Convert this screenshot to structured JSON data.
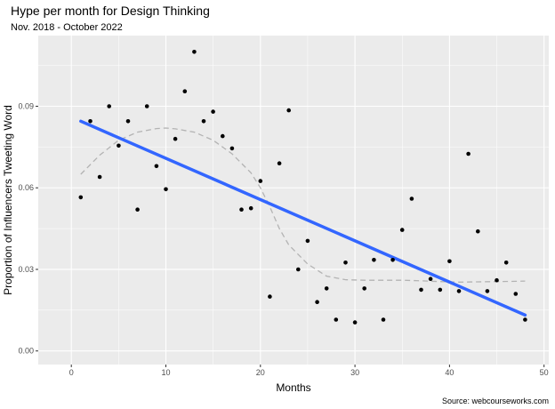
{
  "chart_data": {
    "type": "scatter",
    "title": "Hype per month for Design Thinking",
    "subtitle": "Nov. 2018 - October 2022",
    "xlabel": "Months",
    "ylabel": "Proportion of Influencers Tweeting Word",
    "caption": "Source: webcourseworks.com",
    "xlim": [
      -3.5,
      50.5
    ],
    "ylim": [
      -0.005,
      0.116
    ],
    "x_ticks": [
      0,
      10,
      20,
      30,
      40,
      50
    ],
    "x_tick_labels": [
      "0",
      "10",
      "20",
      "30",
      "40",
      "50"
    ],
    "y_ticks": [
      0.0,
      0.03,
      0.06,
      0.09
    ],
    "y_tick_labels": [
      "0.00",
      "0.03",
      "0.06",
      "0.09"
    ],
    "grid": true,
    "colors": {
      "panel": "#ebebeb",
      "grid": "#ffffff",
      "points": "#000000",
      "linear_fit": "#3366ff",
      "smooth_fit": "#b3b3b3"
    },
    "series": [
      {
        "kind": "points",
        "x": [
          1,
          2,
          3,
          4,
          5,
          6,
          7,
          8,
          9,
          10,
          11,
          12,
          13,
          14,
          15,
          16,
          17,
          18,
          19,
          20,
          21,
          22,
          23,
          24,
          25,
          26,
          27,
          28,
          29,
          30,
          31,
          32,
          33,
          34,
          35,
          36,
          37,
          38,
          39,
          40,
          41,
          42,
          43,
          44,
          45,
          46,
          47,
          48
        ],
        "y": [
          0.0565,
          0.0845,
          0.064,
          0.09,
          0.0755,
          0.0845,
          0.052,
          0.09,
          0.068,
          0.0595,
          0.078,
          0.0955,
          0.11,
          0.0845,
          0.088,
          0.079,
          0.0745,
          0.052,
          0.0525,
          0.0625,
          0.02,
          0.069,
          0.0885,
          0.03,
          0.0405,
          0.018,
          0.023,
          0.0115,
          0.0325,
          0.0105,
          0.023,
          0.0335,
          0.0115,
          0.0335,
          0.0445,
          0.056,
          0.0225,
          0.0265,
          0.0225,
          0.033,
          0.022,
          0.0725,
          0.044,
          0.022,
          0.026,
          0.0325,
          0.021,
          0.0115
        ]
      },
      {
        "kind": "linear-fit",
        "x": [
          1,
          48
        ],
        "y": [
          0.0845,
          0.0132
        ]
      },
      {
        "kind": "loess-smooth",
        "x": [
          1,
          3,
          5,
          7,
          9,
          10,
          11,
          13,
          15,
          17,
          19,
          20,
          21,
          22,
          23,
          25,
          27,
          29,
          31,
          33,
          35,
          37,
          39,
          41,
          43,
          45,
          47,
          48
        ],
        "y": [
          0.065,
          0.072,
          0.0775,
          0.0805,
          0.0818,
          0.082,
          0.0817,
          0.0805,
          0.0775,
          0.0725,
          0.0655,
          0.06,
          0.053,
          0.045,
          0.039,
          0.032,
          0.0275,
          0.0262,
          0.026,
          0.026,
          0.026,
          0.0258,
          0.0255,
          0.0253,
          0.0254,
          0.0255,
          0.0256,
          0.0257
        ]
      }
    ]
  }
}
